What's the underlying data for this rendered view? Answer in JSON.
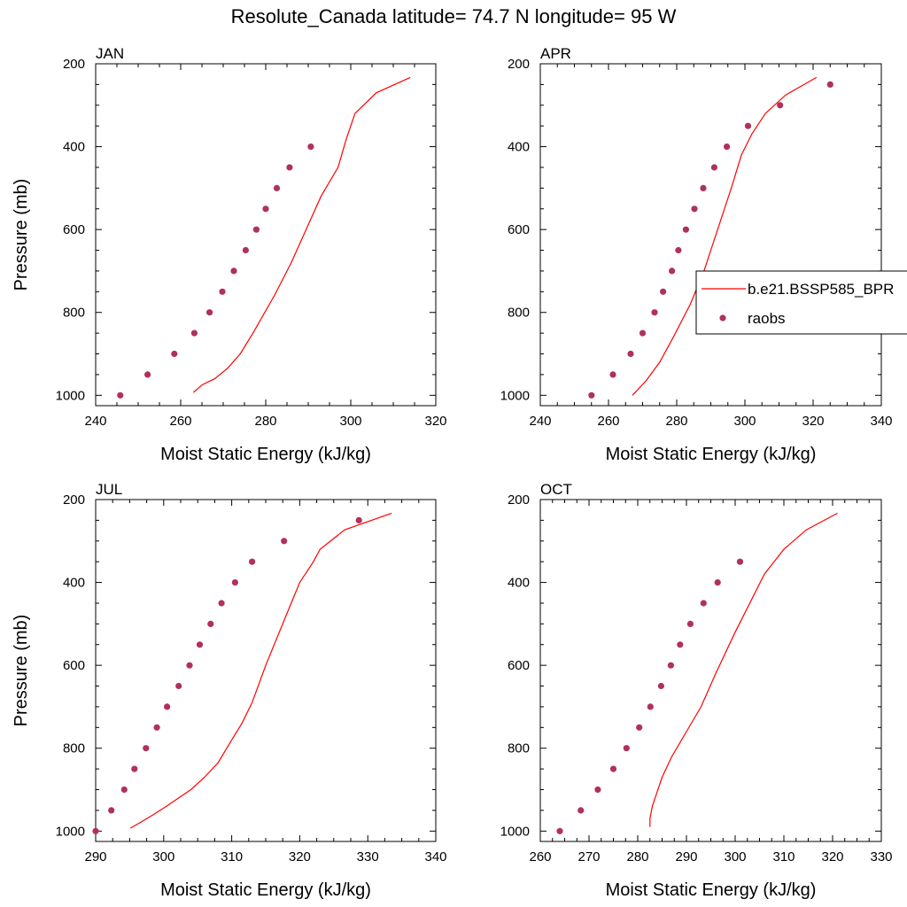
{
  "figure": {
    "title": "Resolute_Canada  latitude= 74.7 N longitude= 95 W",
    "legend": {
      "placement": "right-of-APR-panel",
      "entries": [
        {
          "label": "b.e21.BSSP585_BPR",
          "kind": "line",
          "color": "#ff0000"
        },
        {
          "label": "raobs",
          "kind": "marker",
          "color": "#b03060"
        }
      ]
    }
  },
  "chart_data": [
    {
      "type": "line",
      "panel_label": "JAN",
      "xlabel": "Moist Static Energy (kJ/kg)",
      "ylabel": "Pressure (mb)",
      "xlim": [
        240,
        320
      ],
      "ylim": [
        1025,
        200
      ],
      "y_reversed": true,
      "xticks": [
        240,
        260,
        280,
        300,
        320
      ],
      "yticks": [
        200,
        400,
        600,
        800,
        1000
      ],
      "series": [
        {
          "name": "b.e21.BSSP585_BPR",
          "kind": "line",
          "color": "#ff0000",
          "points": [
            [
              263,
              993
            ],
            [
              265,
              975
            ],
            [
              268,
              960
            ],
            [
              271,
              935
            ],
            [
              274,
              900
            ],
            [
              277,
              850
            ],
            [
              282,
              760
            ],
            [
              286,
              680
            ],
            [
              293,
              520
            ],
            [
              297,
              450
            ],
            [
              299,
              380
            ],
            [
              301,
              320
            ],
            [
              306,
              270
            ],
            [
              314,
              233
            ]
          ]
        },
        {
          "name": "raobs",
          "kind": "scatter",
          "color": "#b03060",
          "points": [
            [
              245.8,
              1000
            ],
            [
              252.2,
              950
            ],
            [
              258.5,
              900
            ],
            [
              263.2,
              850
            ],
            [
              266.8,
              800
            ],
            [
              269.8,
              750
            ],
            [
              272.5,
              700
            ],
            [
              275.3,
              650
            ],
            [
              277.8,
              600
            ],
            [
              280.0,
              550
            ],
            [
              282.6,
              500
            ],
            [
              285.6,
              450
            ],
            [
              290.6,
              400
            ]
          ]
        }
      ]
    },
    {
      "type": "line",
      "panel_label": "APR",
      "xlabel": "Moist Static Energy (kJ/kg)",
      "ylabel": "",
      "xlim": [
        240,
        340
      ],
      "ylim": [
        1025,
        200
      ],
      "y_reversed": true,
      "xticks": [
        240,
        260,
        280,
        300,
        320,
        340
      ],
      "yticks": [
        200,
        400,
        600,
        800,
        1000
      ],
      "series": [
        {
          "name": "b.e21.BSSP585_BPR",
          "kind": "line",
          "color": "#ff0000",
          "points": [
            [
              267,
              1000
            ],
            [
              271,
              965
            ],
            [
              275,
              920
            ],
            [
              279,
              860
            ],
            [
              284,
              780
            ],
            [
              288,
              700
            ],
            [
              292,
              600
            ],
            [
              296,
              500
            ],
            [
              299,
              420
            ],
            [
              302,
              370
            ],
            [
              306,
              320
            ],
            [
              312,
              275
            ],
            [
              321,
              233
            ]
          ]
        },
        {
          "name": "raobs",
          "kind": "scatter",
          "color": "#b03060",
          "points": [
            [
              255.0,
              1000
            ],
            [
              261.3,
              950
            ],
            [
              266.5,
              900
            ],
            [
              270.0,
              850
            ],
            [
              273.5,
              800
            ],
            [
              276.0,
              750
            ],
            [
              278.6,
              700
            ],
            [
              280.5,
              650
            ],
            [
              282.7,
              600
            ],
            [
              285.2,
              550
            ],
            [
              287.8,
              500
            ],
            [
              291.0,
              450
            ],
            [
              294.7,
              400
            ],
            [
              300.9,
              350
            ],
            [
              310.3,
              300
            ],
            [
              325.0,
              250
            ]
          ]
        }
      ]
    },
    {
      "type": "line",
      "panel_label": "JUL",
      "xlabel": "Moist Static Energy (kJ/kg)",
      "ylabel": "Pressure (mb)",
      "xlim": [
        290,
        340
      ],
      "ylim": [
        1025,
        200
      ],
      "y_reversed": true,
      "xticks": [
        290,
        300,
        310,
        320,
        330,
        340
      ],
      "yticks": [
        200,
        400,
        600,
        800,
        1000
      ],
      "series": [
        {
          "name": "b.e21.BSSP585_BPR",
          "kind": "line",
          "color": "#ff0000",
          "points": [
            [
              295.1,
              993
            ],
            [
              296.5,
              980
            ],
            [
              298.5,
              960
            ],
            [
              300.4,
              940
            ],
            [
              302.2,
              920
            ],
            [
              304,
              900
            ],
            [
              306,
              870
            ],
            [
              308,
              835
            ],
            [
              310,
              780
            ],
            [
              311.5,
              740
            ],
            [
              313,
              690
            ],
            [
              315,
              600
            ],
            [
              318,
              480
            ],
            [
              320,
              400
            ],
            [
              322,
              350
            ],
            [
              323,
              320
            ],
            [
              326.6,
              273
            ],
            [
              333.5,
              233
            ]
          ]
        },
        {
          "name": "raobs",
          "kind": "scatter",
          "color": "#b03060",
          "points": [
            [
              290.0,
              1000
            ],
            [
              292.3,
              950
            ],
            [
              294.2,
              900
            ],
            [
              295.7,
              850
            ],
            [
              297.4,
              800
            ],
            [
              299.0,
              750
            ],
            [
              300.5,
              700
            ],
            [
              302.2,
              650
            ],
            [
              303.8,
              600
            ],
            [
              305.3,
              550
            ],
            [
              306.9,
              500
            ],
            [
              308.5,
              450
            ],
            [
              310.5,
              400
            ],
            [
              313.0,
              350
            ],
            [
              317.7,
              300
            ],
            [
              328.7,
              250
            ]
          ]
        }
      ]
    },
    {
      "type": "line",
      "panel_label": "OCT",
      "xlabel": "Moist Static Energy (kJ/kg)",
      "ylabel": "",
      "xlim": [
        260,
        330
      ],
      "ylim": [
        1025,
        200
      ],
      "y_reversed": true,
      "xticks": [
        260,
        270,
        280,
        290,
        300,
        310,
        320,
        330
      ],
      "yticks": [
        200,
        400,
        600,
        800,
        1000
      ],
      "series": [
        {
          "name": "b.e21.BSSP585_BPR",
          "kind": "line",
          "color": "#ff0000",
          "points": [
            [
              282.5,
              990
            ],
            [
              282.5,
              970
            ],
            [
              283,
              940
            ],
            [
              285,
              870
            ],
            [
              287,
              820
            ],
            [
              290,
              760
            ],
            [
              293,
              700
            ],
            [
              296,
              620
            ],
            [
              300,
              520
            ],
            [
              303,
              450
            ],
            [
              306,
              380
            ],
            [
              310,
              320
            ],
            [
              314.6,
              273
            ],
            [
              321,
              233
            ]
          ]
        },
        {
          "name": "raobs",
          "kind": "scatter",
          "color": "#b03060",
          "points": [
            [
              264.0,
              1000
            ],
            [
              268.3,
              950
            ],
            [
              271.8,
              900
            ],
            [
              275.0,
              850
            ],
            [
              277.7,
              800
            ],
            [
              280.3,
              750
            ],
            [
              282.6,
              700
            ],
            [
              284.8,
              650
            ],
            [
              286.8,
              600
            ],
            [
              288.7,
              550
            ],
            [
              290.8,
              500
            ],
            [
              293.5,
              450
            ],
            [
              296.4,
              400
            ],
            [
              301.0,
              350
            ]
          ]
        }
      ]
    }
  ]
}
